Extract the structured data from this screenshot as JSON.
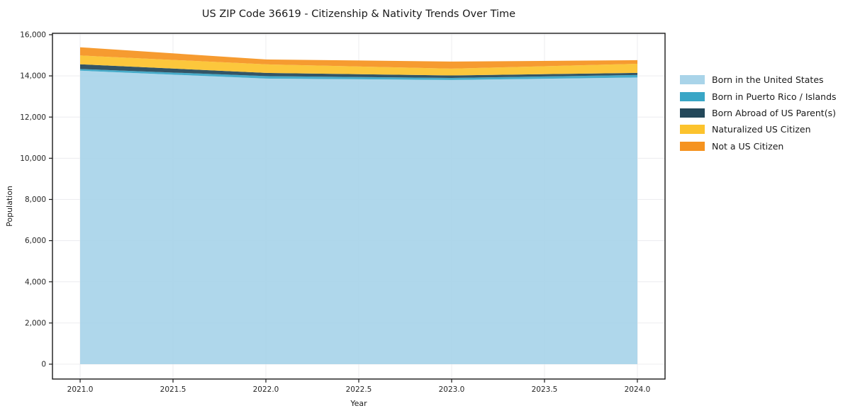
{
  "figure": {
    "title": "US ZIP Code 36619 - Citizenship & Nativity Trends Over Time"
  },
  "chart_data": {
    "type": "area",
    "stacked": true,
    "title": "US ZIP Code 36619 - Citizenship & Nativity Trends Over Time",
    "xlabel": "Year",
    "ylabel": "Population",
    "x": [
      2021,
      2022,
      2023,
      2024
    ],
    "series": [
      {
        "name": "Born in the United States",
        "color": "#A9D4E9",
        "values": [
          14250,
          13870,
          13800,
          13920
        ]
      },
      {
        "name": "Born in Puerto Rico / Islands",
        "color": "#39A6C6",
        "values": [
          85,
          120,
          100,
          120
        ]
      },
      {
        "name": "Born Abroad of US Parent(s)",
        "color": "#23485A",
        "values": [
          230,
          155,
          120,
          105
        ]
      },
      {
        "name": "Naturalized US Citizen",
        "color": "#FCC32D",
        "values": [
          425,
          415,
          330,
          445
        ]
      },
      {
        "name": "Not a US Citizen",
        "color": "#F59320",
        "values": [
          400,
          240,
          345,
          175
        ]
      }
    ],
    "totals": [
      15390,
      14800,
      14695,
      14765
    ],
    "xlim": [
      2020.851,
      2024.149
    ],
    "ylim": [
      -722,
      16068
    ],
    "x_ticks": {
      "values": [
        2021.0,
        2021.5,
        2022.0,
        2022.5,
        2023.0,
        2023.5,
        2024.0
      ],
      "labels": [
        "2021.0",
        "2021.5",
        "2022.0",
        "2022.5",
        "2023.0",
        "2023.5",
        "2024.0"
      ]
    },
    "y_ticks": {
      "values": [
        0,
        2000,
        4000,
        6000,
        8000,
        10000,
        12000,
        14000,
        16000
      ],
      "labels": [
        "0",
        "2,000",
        "4,000",
        "6,000",
        "8,000",
        "10,000",
        "12,000",
        "14,000",
        "16,000"
      ]
    },
    "grid": true,
    "legend_position": "right-outside",
    "colors": {
      "grid": "#ececef",
      "spine": "#1a1a1a",
      "text": "#1a1a1a"
    }
  }
}
